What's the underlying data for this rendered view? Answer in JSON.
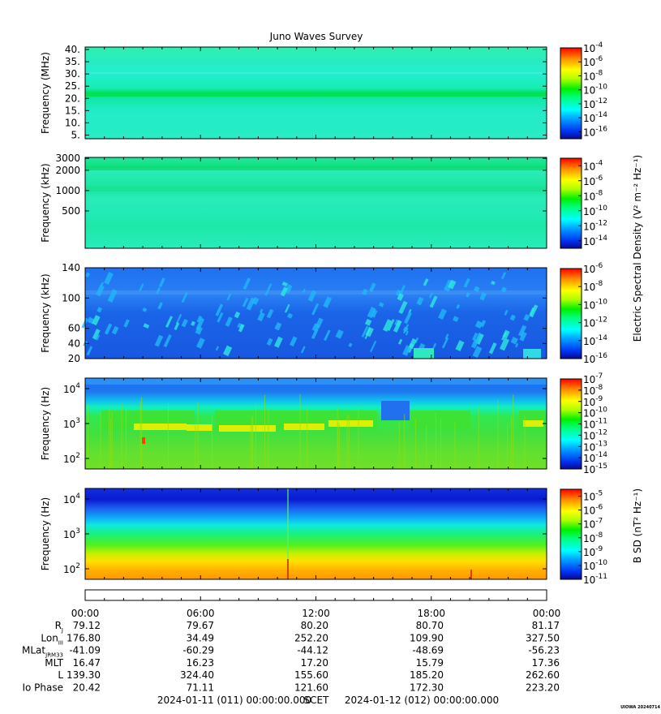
{
  "title": "Juno Waves Survey",
  "chart_data": [
    {
      "type": "heatmap",
      "ylabel": "Frequency (MHz)",
      "y_ticks": [
        "5.",
        "10.",
        "15.",
        "20.",
        "25.",
        "30.",
        "35.",
        "40."
      ],
      "y_tick_values": [
        5,
        10,
        15,
        20,
        25,
        30,
        35,
        40
      ],
      "ylim": [
        3.5,
        41
      ],
      "y_scale": "linear",
      "colorbar_ticks": [
        "-4",
        "-6",
        "-8",
        "-10",
        "-12",
        "-14",
        "-16"
      ],
      "colorbar_range": [
        -17,
        -4
      ],
      "colorbar_label": ""
    },
    {
      "type": "heatmap",
      "ylabel": "Frequency (kHz)",
      "y_ticks": [
        "3000",
        "2000",
        "1000",
        "500"
      ],
      "y_tick_values": [
        3000,
        2000,
        1000,
        500
      ],
      "ylim": [
        140,
        3100
      ],
      "y_scale": "log",
      "colorbar_ticks": [
        "-4",
        "-6",
        "-8",
        "-10",
        "-12",
        "-14"
      ],
      "colorbar_range": [
        -15,
        -3
      ],
      "colorbar_label": ""
    },
    {
      "type": "heatmap",
      "ylabel": "Frequency (kHz)",
      "y_ticks": [
        "140",
        "100",
        "60",
        "40",
        "20"
      ],
      "y_tick_values": [
        140,
        100,
        60,
        40,
        20
      ],
      "ylim": [
        20,
        140
      ],
      "y_scale": "linear",
      "colorbar_ticks": [
        "-6",
        "-8",
        "-10",
        "-12",
        "-14",
        "-16"
      ],
      "colorbar_range": [
        -16,
        -6
      ],
      "colorbar_label": "Electric Spectral Density (V² m⁻² Hz⁻¹)"
    },
    {
      "type": "heatmap",
      "ylabel": "Frequency (Hz)",
      "y_ticks": [
        "4",
        "3",
        "2"
      ],
      "y_tick_values": [
        10000,
        1000,
        100
      ],
      "ylim": [
        50,
        20000
      ],
      "y_scale": "log",
      "colorbar_ticks": [
        "-7",
        "-8",
        "-9",
        "-10",
        "-11",
        "-12",
        "-13",
        "-14",
        "-15"
      ],
      "colorbar_range": [
        -15,
        -7
      ],
      "colorbar_label": ""
    },
    {
      "type": "heatmap",
      "ylabel": "Frequency (Hz)",
      "y_ticks": [
        "4",
        "3",
        "2"
      ],
      "y_tick_values": [
        10000,
        1000,
        100
      ],
      "ylim": [
        50,
        20000
      ],
      "y_scale": "log",
      "colorbar_ticks": [
        "-5",
        "-6",
        "-7",
        "-8",
        "-9",
        "-10",
        "-11"
      ],
      "colorbar_range": [
        -11,
        -4.5
      ],
      "colorbar_label": "B SD (nT² Hz⁻¹)"
    }
  ],
  "x_ticks": [
    "00:00",
    "06:00",
    "12:00",
    "18:00",
    "00:00"
  ],
  "ephemeris": [
    {
      "label": "R",
      "sub": "J",
      "values": [
        "79.12",
        "79.67",
        "80.20",
        "80.70",
        "81.17"
      ]
    },
    {
      "label": "Lon",
      "sub": "III",
      "values": [
        "176.80",
        "34.49",
        "252.20",
        "109.90",
        "327.50"
      ]
    },
    {
      "label": "MLat",
      "sub": "JRM33",
      "values": [
        "-41.09",
        "-60.29",
        "-44.12",
        "-48.69",
        "-56.23"
      ]
    },
    {
      "label": "MLT",
      "sub": "",
      "values": [
        "16.47",
        "16.23",
        "17.20",
        "15.79",
        "17.36"
      ]
    },
    {
      "label": "L",
      "sub": "",
      "values": [
        "139.30",
        "324.40",
        "155.60",
        "185.20",
        "262.60"
      ]
    },
    {
      "label": "Io Phase",
      "sub": "",
      "values": [
        "20.42",
        "71.11",
        "121.60",
        "172.30",
        "223.20"
      ]
    }
  ],
  "footer": {
    "start": "2024-01-11 (011) 00:00:00.000",
    "scet": "SCET",
    "end": "2024-01-12 (012) 00:00:00.000"
  },
  "stamp": "UIOWA 20240714"
}
